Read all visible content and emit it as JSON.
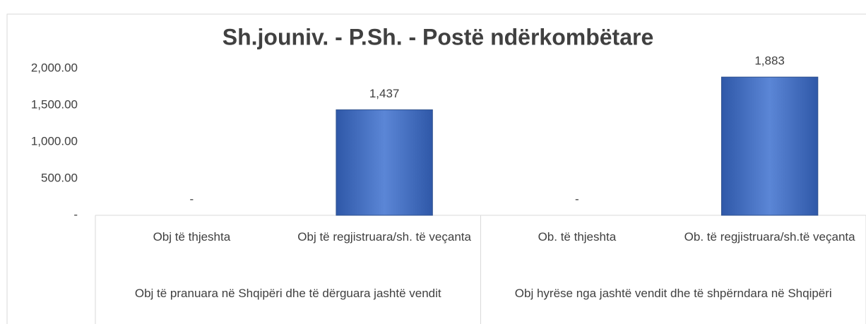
{
  "chart_data": {
    "type": "bar",
    "title": "Sh.jouniv. - P.Sh. -  Postë ndërkombëtare",
    "categories": [
      "Obj të thjeshta",
      "Obj të regjistruara/sh. të veçanta",
      "Ob. të thjeshta",
      "Ob. të regjistruara/sh.të veçanta"
    ],
    "groups": [
      "Obj të pranuara në Shqipëri dhe të dërguara jashtë vendit",
      "Obj hyrëse nga jashtë vendit dhe të shpërndara në Shqipëri"
    ],
    "values": [
      0,
      1437,
      0,
      1883
    ],
    "value_labels": [
      "-",
      "1,437",
      "-",
      "1,883"
    ],
    "color": "#4472c4",
    "ylim": [
      0,
      2000
    ],
    "yticks": [
      {
        "value": 0,
        "label": "-"
      },
      {
        "value": 500,
        "label": "500.00"
      },
      {
        "value": 1000,
        "label": "1,000.00"
      },
      {
        "value": 1500,
        "label": "1,500.00"
      },
      {
        "value": 2000,
        "label": "2,000.00"
      }
    ],
    "grid": false
  }
}
